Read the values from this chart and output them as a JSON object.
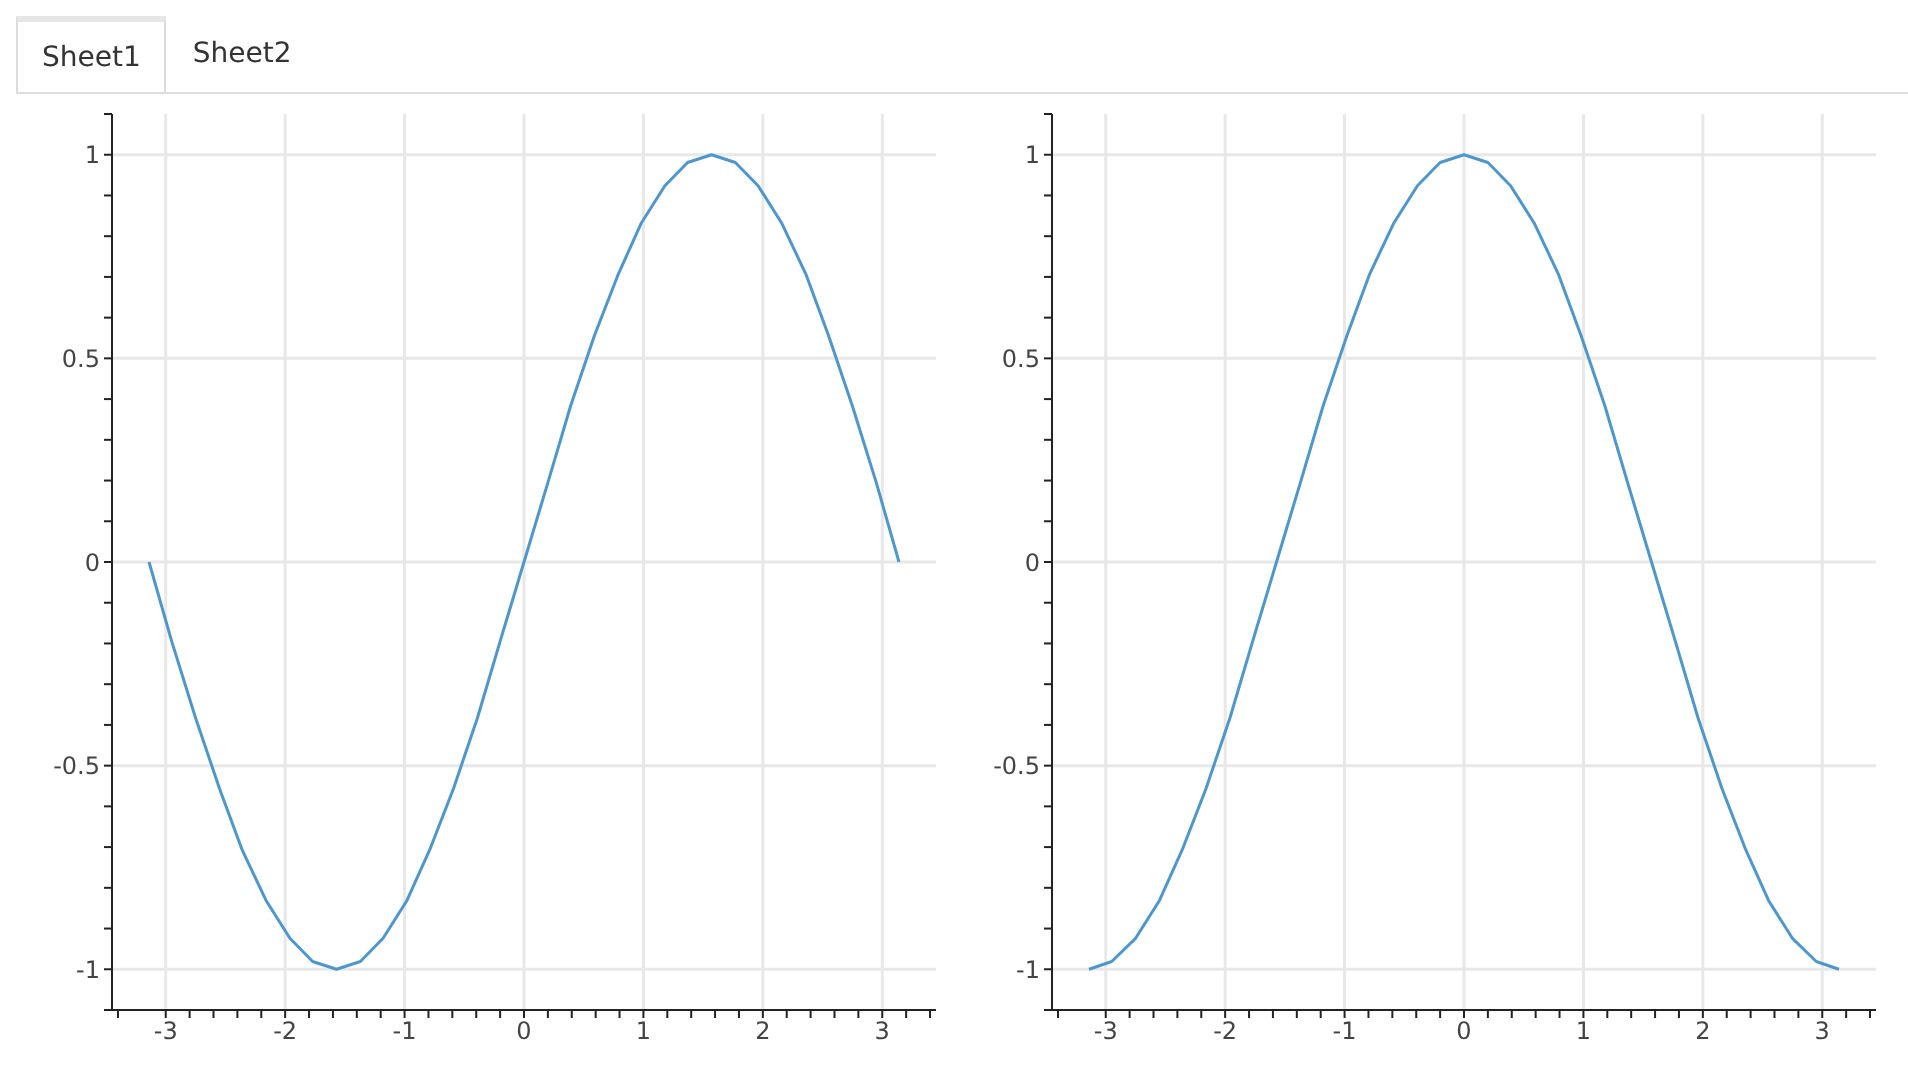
{
  "chart_data": [
    {
      "type": "line",
      "annotations": [
        "Sheet1"
      ],
      "x": [
        -3.14,
        -2.95,
        -2.75,
        -2.55,
        -2.36,
        -2.16,
        -1.96,
        -1.77,
        -1.57,
        -1.37,
        -1.18,
        -0.98,
        -0.79,
        -0.59,
        -0.39,
        -0.2,
        0,
        0.2,
        0.39,
        0.59,
        0.79,
        0.98,
        1.18,
        1.37,
        1.57,
        1.77,
        1.96,
        2.16,
        2.36,
        2.55,
        2.75,
        2.95,
        3.14
      ],
      "series": [
        {
          "color": "#4f97cb",
          "values": [
            0,
            -0.195,
            -0.383,
            -0.556,
            -0.707,
            -0.831,
            -0.924,
            -0.981,
            -1,
            -0.981,
            -0.924,
            -0.831,
            -0.707,
            -0.556,
            -0.383,
            -0.195,
            0,
            0.195,
            0.383,
            0.556,
            0.707,
            0.831,
            0.924,
            0.981,
            1,
            0.981,
            0.924,
            0.831,
            0.707,
            0.556,
            0.383,
            0.195,
            0
          ]
        }
      ],
      "xlim": [
        -3.45,
        3.45
      ],
      "ylim": [
        -1.1,
        1.1
      ],
      "xticks": [
        {
          "value": -3.4,
          "label": null
        },
        -3,
        {
          "value": -2.8,
          "label": null
        },
        {
          "value": -2.6,
          "label": null
        },
        {
          "value": -2.4,
          "label": null
        },
        {
          "value": -2.2,
          "label": null
        },
        -2,
        {
          "value": -1.8,
          "label": null
        },
        {
          "value": -1.6,
          "label": null
        },
        {
          "value": -1.4,
          "label": null
        },
        {
          "value": -1.2,
          "label": null
        },
        -1,
        {
          "value": -0.8,
          "label": null
        },
        {
          "value": -0.6,
          "label": null
        },
        {
          "value": -0.4,
          "label": null
        },
        {
          "value": -0.2,
          "label": null
        },
        0,
        {
          "value": 0.2,
          "label": null
        },
        {
          "value": 0.4,
          "label": null
        },
        {
          "value": 0.6,
          "label": null
        },
        {
          "value": 0.8,
          "label": null
        },
        1,
        {
          "value": 1.2,
          "label": null
        },
        {
          "value": 1.4,
          "label": null
        },
        {
          "value": 1.6,
          "label": null
        },
        {
          "value": 1.8,
          "label": null
        },
        2,
        {
          "value": 2.2,
          "label": null
        },
        {
          "value": 2.4,
          "label": null
        },
        {
          "value": 2.6,
          "label": null
        },
        {
          "value": 2.8,
          "label": null
        },
        3,
        {
          "value": 3.2,
          "label": null
        },
        {
          "value": 3.4,
          "label": null
        }
      ],
      "yticks": [
        {
          "value": -1.1,
          "label": null
        },
        -1,
        {
          "value": -0.9,
          "label": null
        },
        {
          "value": -0.8,
          "label": null
        },
        {
          "value": -0.7,
          "label": null
        },
        {
          "value": -0.6,
          "label": null
        },
        -0.5,
        {
          "value": -0.4,
          "label": null
        },
        {
          "value": -0.3,
          "label": null
        },
        {
          "value": -0.2,
          "label": null
        },
        {
          "value": -0.1,
          "label": null
        },
        0,
        {
          "value": 0.1,
          "label": null
        },
        {
          "value": 0.2,
          "label": null
        },
        {
          "value": 0.3,
          "label": null
        },
        {
          "value": 0.4,
          "label": null
        },
        0.5,
        {
          "value": 0.6,
          "label": null
        },
        {
          "value": 0.7,
          "label": null
        },
        {
          "value": 0.8,
          "label": null
        },
        {
          "value": 0.9,
          "label": null
        },
        1,
        {
          "value": 1.1,
          "label": null
        }
      ],
      "grid": true,
      "legend": false,
      "marker": "none",
      "line_style": "solid"
    },
    {
      "type": "line",
      "annotations": [
        "Sheet2"
      ],
      "x": [
        -3.14,
        -2.95,
        -2.75,
        -2.55,
        -2.36,
        -2.16,
        -1.96,
        -1.77,
        -1.57,
        -1.37,
        -1.18,
        -0.98,
        -0.79,
        -0.59,
        -0.39,
        -0.2,
        0,
        0.2,
        0.39,
        0.59,
        0.79,
        0.98,
        1.18,
        1.37,
        1.57,
        1.77,
        1.96,
        2.16,
        2.36,
        2.55,
        2.75,
        2.95,
        3.14
      ],
      "series": [
        {
          "color": "#4f97cb",
          "values": [
            -1,
            -0.981,
            -0.924,
            -0.831,
            -0.707,
            -0.556,
            -0.383,
            -0.195,
            0,
            0.195,
            0.383,
            0.556,
            0.707,
            0.831,
            0.924,
            0.981,
            1,
            0.981,
            0.924,
            0.831,
            0.707,
            0.556,
            0.383,
            0.195,
            0,
            -0.195,
            -0.383,
            -0.556,
            -0.707,
            -0.831,
            -0.924,
            -0.981,
            -1
          ]
        }
      ],
      "xlim": [
        -3.45,
        3.45
      ],
      "ylim": [
        -1.1,
        1.1
      ],
      "xticks": [
        {
          "value": -3.4,
          "label": null
        },
        -3,
        {
          "value": -2.8,
          "label": null
        },
        {
          "value": -2.6,
          "label": null
        },
        {
          "value": -2.4,
          "label": null
        },
        {
          "value": -2.2,
          "label": null
        },
        -2,
        {
          "value": -1.8,
          "label": null
        },
        {
          "value": -1.6,
          "label": null
        },
        {
          "value": -1.4,
          "label": null
        },
        {
          "value": -1.2,
          "label": null
        },
        -1,
        {
          "value": -0.8,
          "label": null
        },
        {
          "value": -0.6,
          "label": null
        },
        {
          "value": -0.4,
          "label": null
        },
        {
          "value": -0.2,
          "label": null
        },
        0,
        {
          "value": 0.2,
          "label": null
        },
        {
          "value": 0.4,
          "label": null
        },
        {
          "value": 0.6,
          "label": null
        },
        {
          "value": 0.8,
          "label": null
        },
        1,
        {
          "value": 1.2,
          "label": null
        },
        {
          "value": 1.4,
          "label": null
        },
        {
          "value": 1.6,
          "label": null
        },
        {
          "value": 1.8,
          "label": null
        },
        2,
        {
          "value": 2.2,
          "label": null
        },
        {
          "value": 2.4,
          "label": null
        },
        {
          "value": 2.6,
          "label": null
        },
        {
          "value": 2.8,
          "label": null
        },
        3,
        {
          "value": 3.2,
          "label": null
        },
        {
          "value": 3.4,
          "label": null
        }
      ],
      "yticks": [
        {
          "value": -1.1,
          "label": null
        },
        -1,
        {
          "value": -0.9,
          "label": null
        },
        {
          "value": -0.8,
          "label": null
        },
        {
          "value": -0.7,
          "label": null
        },
        {
          "value": -0.6,
          "label": null
        },
        -0.5,
        {
          "value": -0.4,
          "label": null
        },
        {
          "value": -0.3,
          "label": null
        },
        {
          "value": -0.2,
          "label": null
        },
        {
          "value": -0.1,
          "label": null
        },
        0,
        {
          "value": 0.1,
          "label": null
        },
        {
          "value": 0.2,
          "label": null
        },
        {
          "value": 0.3,
          "label": null
        },
        {
          "value": 0.4,
          "label": null
        },
        0.5,
        {
          "value": 0.6,
          "label": null
        },
        {
          "value": 0.7,
          "label": null
        },
        {
          "value": 0.8,
          "label": null
        },
        {
          "value": 0.9,
          "label": null
        },
        1,
        {
          "value": 1.1,
          "label": null
        }
      ],
      "grid": true,
      "legend": false,
      "marker": "none",
      "line_style": "solid"
    }
  ]
}
